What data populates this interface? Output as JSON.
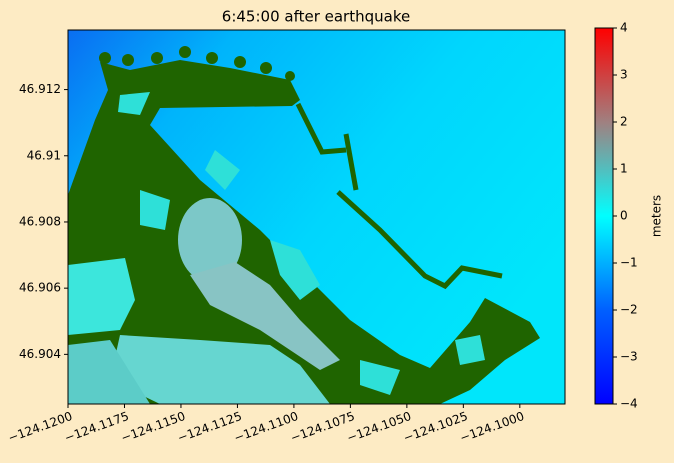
{
  "chart_data": {
    "type": "heatmap",
    "title": "6:45:00 after earthquake",
    "xlim": [
      -124.12,
      -124.098
    ],
    "xticks": [
      {
        "value": -124.12,
        "label": "−124.1200"
      },
      {
        "value": -124.1175,
        "label": "−124.1175"
      },
      {
        "value": -124.115,
        "label": "−124.1150"
      },
      {
        "value": -124.1125,
        "label": "−124.1125"
      },
      {
        "value": -124.11,
        "label": "−124.1100"
      },
      {
        "value": -124.1075,
        "label": "−124.1075"
      },
      {
        "value": -124.105,
        "label": "−124.1050"
      },
      {
        "value": -124.1025,
        "label": "−124.1025"
      },
      {
        "value": -124.1,
        "label": "−124.1000"
      }
    ],
    "ylim": [
      46.9025,
      46.9138
    ],
    "yticks": [
      46.904,
      46.906,
      46.908,
      46.91,
      46.912
    ],
    "colorbar": {
      "label": "meters",
      "lim": [
        -4,
        4
      ],
      "ticks": [
        {
          "value": -4,
          "label": "−4"
        },
        {
          "value": -3,
          "label": "−3"
        },
        {
          "value": -2,
          "label": "−2"
        },
        {
          "value": -1,
          "label": "−1"
        },
        0,
        1,
        2,
        3,
        4
      ]
    }
  }
}
